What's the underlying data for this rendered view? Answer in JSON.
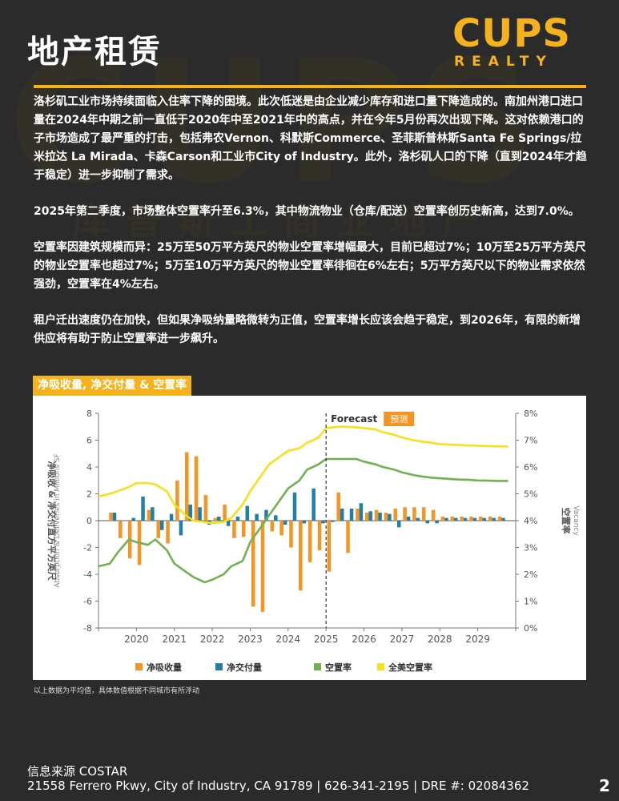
{
  "header": {
    "title": "地产租赁",
    "logo_main": "CUPS",
    "logo_sub": "REALTY",
    "watermark_text": "CUPS",
    "watermark_sub": "库普斯工商业地产"
  },
  "body": {
    "paragraphs": [
      "洛杉矶工业市场持续面临入住率下降的困境。此次低迷是由企业减少库存和进口量下降造成的。南加州港口进口量在2024年中期之前一直低于2020年中至2021年中的高点，并在今年5月份再次出现下降。这对依赖港口的子市场造成了最严重的打击，包括弗农Vernon、科默斯Commerce、圣菲斯普林斯Santa Fe Springs/拉米拉达 La Mirada、卡森Carson和工业市City of Industry。此外，洛杉矶人口的下降（直到2024年才趋于稳定）进一步抑制了需求。",
      "2025年第二季度，市场整体空置率升至6.3%，其中物流物业（仓库/配送）空置率创历史新高，达到7.0%。",
      "空置率因建筑规模而异：25万至50万平方英尺的物业空置率增幅最大，目前已超过7%；10万至25万平方英尺的物业空置率也超过7%；5万至10万平方英尺的物业空置率徘徊在6%左右；5万平方英尺以下的物业需求依然强劲，空置率在4%左右。",
      "租户迁出速度仍在加快，但如果净吸纳量略微转为正值，空置率增长应该会趋于稳定，到2026年，有限的新增供应将有助于防止空置率进一步飙升。"
    ]
  },
  "chart_section": {
    "title": "净吸收量, 净交付量 & 空置率",
    "note": "以上数据为平均值，具体数值根据不同城市有所浮动"
  },
  "chart_data": {
    "type": "bar",
    "title": "净吸收量, 净交付量 & 空置率",
    "ylabel_left_cn": "净吸收 & 净交付直方平方英尺",
    "ylabel_left_en": "Absorption & Deliveries in Millions SF",
    "ylabel_right_cn": "空置率",
    "ylabel_right_en": "Vacancy",
    "ylim_left": [
      -8,
      8
    ],
    "yticks_left": [
      "8",
      "6",
      "4",
      "2",
      "0",
      "-2",
      "-4",
      "-6",
      "-8"
    ],
    "ylim_right": [
      0,
      8
    ],
    "yticks_right": [
      "8%",
      "7%",
      "6%",
      "5%",
      "4%",
      "3%",
      "2%",
      "1%",
      "0%"
    ],
    "x_start": 2019,
    "x_end": 2030,
    "xticks": [
      "2020",
      "2021",
      "2022",
      "2023",
      "2024",
      "2025",
      "2026",
      "2027",
      "2028",
      "2029"
    ],
    "forecast_label": "Forecast",
    "forecast_label_cn": "预测",
    "forecast_at": 2025.0,
    "quarters": [
      "2019Q2",
      "2019Q3",
      "2019Q4",
      "2020Q1",
      "2020Q2",
      "2020Q3",
      "2020Q4",
      "2021Q1",
      "2021Q2",
      "2021Q3",
      "2021Q4",
      "2022Q1",
      "2022Q2",
      "2022Q3",
      "2022Q4",
      "2023Q1",
      "2023Q2",
      "2023Q3",
      "2023Q4",
      "2024Q1",
      "2024Q2",
      "2024Q3",
      "2024Q4",
      "2025Q1",
      "2025Q2",
      "2025Q3",
      "2025Q4",
      "2026Q1",
      "2026Q2",
      "2026Q3",
      "2026Q4",
      "2027Q1",
      "2027Q2",
      "2027Q3",
      "2027Q4",
      "2028Q1",
      "2028Q2",
      "2028Q3",
      "2028Q4",
      "2029Q1",
      "2029Q2",
      "2029Q3"
    ],
    "series": [
      {
        "name": "净吸收量",
        "kind": "bar",
        "color": "#f39423",
        "values": [
          0.6,
          -1.3,
          -2.8,
          -3.3,
          0.8,
          -1.3,
          -1.7,
          3.0,
          5.1,
          4.8,
          1.9,
          0.2,
          1.2,
          -1.3,
          -1.2,
          -6.4,
          -6.8,
          -0.8,
          -1.1,
          -2.0,
          -5.2,
          -3.1,
          -2.2,
          -3.8,
          2.1,
          -2.4,
          0.9,
          0.6,
          0.8,
          0.6,
          0.9,
          1.0,
          1.0,
          1.0,
          0.8,
          0.3,
          0.3,
          0.3,
          0.3,
          0.3,
          0.3,
          0.3
        ]
      },
      {
        "name": "净交付量",
        "kind": "bar",
        "color": "#1f7fa8",
        "values": [
          0.6,
          0.0,
          0.2,
          1.8,
          1.0,
          -0.7,
          0.5,
          -1.1,
          1.2,
          1.0,
          -0.3,
          0.3,
          -0.4,
          0.3,
          1.1,
          0.5,
          0.8,
          0.4,
          -0.3,
          2.1,
          -0.2,
          2.4,
          -0.2,
          -0.1,
          0.9,
          0.9,
          1.3,
          0.7,
          0.6,
          0.5,
          -0.5,
          0.3,
          0.2,
          -0.2,
          -0.2,
          0.2,
          0.2,
          0.2,
          0.2,
          0.2,
          0.2,
          0.2
        ]
      },
      {
        "name": "空置率",
        "kind": "line",
        "color": "#71b24f",
        "x": [
          2019.0,
          2019.3,
          2019.5,
          2019.8,
          2020.0,
          2020.3,
          2020.5,
          2020.8,
          2021.0,
          2021.3,
          2021.5,
          2021.8,
          2022.0,
          2022.3,
          2022.5,
          2022.8,
          2023.0,
          2023.3,
          2023.5,
          2023.8,
          2024.0,
          2024.3,
          2024.5,
          2024.8,
          2025.0,
          2025.3,
          2025.5,
          2025.8,
          2026.0,
          2026.3,
          2026.5,
          2026.8,
          2027.0,
          2027.3,
          2027.5,
          2027.8,
          2028.0,
          2028.3,
          2028.5,
          2028.8,
          2029.0,
          2029.3,
          2029.5,
          2029.8
        ],
        "values": [
          2.3,
          2.4,
          2.8,
          3.3,
          3.2,
          3.1,
          3.3,
          2.9,
          2.4,
          2.1,
          1.9,
          1.7,
          1.8,
          2.0,
          2.3,
          2.5,
          3.2,
          3.8,
          4.2,
          4.8,
          5.2,
          5.5,
          5.9,
          6.1,
          6.3,
          6.3,
          6.3,
          6.3,
          6.2,
          6.1,
          6.0,
          5.9,
          5.8,
          5.7,
          5.65,
          5.6,
          5.58,
          5.55,
          5.53,
          5.52,
          5.5,
          5.49,
          5.48,
          5.48
        ]
      },
      {
        "name": "全美空置率",
        "kind": "line",
        "color": "#f7e11b",
        "x": [
          2019.0,
          2019.3,
          2019.5,
          2019.8,
          2020.0,
          2020.3,
          2020.5,
          2020.8,
          2021.0,
          2021.3,
          2021.5,
          2021.8,
          2022.0,
          2022.3,
          2022.5,
          2022.8,
          2023.0,
          2023.3,
          2023.5,
          2023.8,
          2024.0,
          2024.3,
          2024.5,
          2024.8,
          2025.0,
          2025.3,
          2025.5,
          2025.8,
          2026.0,
          2026.3,
          2026.5,
          2026.8,
          2027.0,
          2027.3,
          2027.5,
          2027.8,
          2028.0,
          2028.3,
          2028.5,
          2028.8,
          2029.0,
          2029.3,
          2029.5,
          2029.8
        ],
        "values": [
          4.9,
          5.0,
          5.1,
          5.25,
          5.4,
          5.4,
          5.35,
          5.1,
          4.6,
          4.2,
          4.0,
          3.95,
          3.9,
          3.95,
          4.1,
          4.6,
          5.1,
          5.7,
          6.1,
          6.4,
          6.6,
          6.7,
          6.9,
          7.1,
          7.45,
          7.5,
          7.5,
          7.48,
          7.45,
          7.4,
          7.3,
          7.2,
          7.1,
          7.0,
          6.95,
          6.9,
          6.85,
          6.83,
          6.82,
          6.8,
          6.79,
          6.78,
          6.77,
          6.76
        ]
      }
    ],
    "legend": [
      "净吸收量",
      "净交付量",
      "空置率",
      "全美空置率"
    ],
    "legend_position": "bottom",
    "grid": false
  },
  "footer": {
    "source": "信息来源 COSTAR",
    "address": "21558 Ferrero Pkwy, City of Industry, CA 91789 | 626-341-2195 | DRE #: 02084362",
    "page_number": "2"
  }
}
